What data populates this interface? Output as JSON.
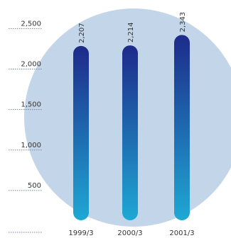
{
  "chart_data": {
    "type": "bar",
    "categories": [
      "1999/3",
      "2000/3",
      "2001/3"
    ],
    "values": [
      2207,
      2214,
      2343
    ],
    "value_labels": [
      "2,207",
      "2,214",
      "2,343"
    ],
    "yticks": [
      500,
      1000,
      1500,
      2000,
      2500
    ],
    "ytick_labels": [
      "500",
      "1,000",
      "1,500",
      "2,000",
      "2,500"
    ],
    "ylim": [
      0,
      2500
    ],
    "grid": false,
    "colors": {
      "bar_top": "#1e2a8a",
      "bar_bottom": "#1fa8d4",
      "circle": "#c3d5e8",
      "tick": "#7a8794",
      "label": "#333333"
    }
  }
}
